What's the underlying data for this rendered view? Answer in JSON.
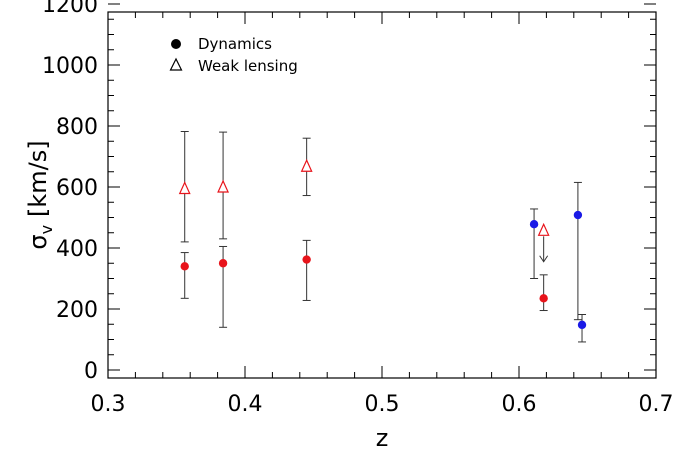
{
  "chart_data": {
    "type": "scatter",
    "xlabel": "z",
    "ylabel_symbol": "σ",
    "ylabel_subscript": "v",
    "ylabel_units": "[km/s]",
    "xlim": [
      0.3,
      0.7
    ],
    "ylim": [
      0,
      1200
    ],
    "xticks": [
      0.3,
      0.4,
      0.5,
      0.6,
      0.7
    ],
    "xtick_labels": [
      "0.3",
      "0.4",
      "0.5",
      "0.6",
      "0.7"
    ],
    "yticks": [
      0,
      200,
      400,
      600,
      800,
      1000,
      1200
    ],
    "ytick_labels": [
      "0",
      "200",
      "400",
      "600",
      "800",
      "1000",
      "1200"
    ],
    "grid": false,
    "legend_position": "top-left",
    "legend": [
      {
        "marker": "filled-circle",
        "label": "Dynamics"
      },
      {
        "marker": "open-triangle",
        "label": "Weak lensing"
      }
    ],
    "series": [
      {
        "name": "Dynamics",
        "marker": "filled-circle",
        "points": [
          {
            "x": 0.356,
            "y": 340,
            "lo": 235,
            "hi": 385,
            "color": "#e8141b"
          },
          {
            "x": 0.384,
            "y": 350,
            "lo": 140,
            "hi": 405,
            "color": "#e8141b"
          },
          {
            "x": 0.445,
            "y": 362,
            "lo": 228,
            "hi": 425,
            "color": "#e8141b"
          },
          {
            "x": 0.611,
            "y": 478,
            "lo": 300,
            "hi": 528,
            "color": "#1a1ae6"
          },
          {
            "x": 0.618,
            "y": 235,
            "lo": 195,
            "hi": 312,
            "color": "#e8141b"
          },
          {
            "x": 0.643,
            "y": 508,
            "lo": 165,
            "hi": 615,
            "color": "#1a1ae6"
          },
          {
            "x": 0.646,
            "y": 148,
            "lo": 92,
            "hi": 182,
            "color": "#1a1ae6"
          }
        ]
      },
      {
        "name": "Weak lensing",
        "marker": "open-triangle",
        "points": [
          {
            "x": 0.356,
            "y": 595,
            "lo": 420,
            "hi": 782,
            "color": "#e8141b"
          },
          {
            "x": 0.384,
            "y": 600,
            "lo": 430,
            "hi": 780,
            "color": "#e8141b"
          },
          {
            "x": 0.445,
            "y": 668,
            "lo": 572,
            "hi": 760,
            "color": "#e8141b"
          },
          {
            "x": 0.618,
            "y": 458,
            "upper_limit_to": 355,
            "color": "#e8141b"
          }
        ]
      }
    ]
  }
}
